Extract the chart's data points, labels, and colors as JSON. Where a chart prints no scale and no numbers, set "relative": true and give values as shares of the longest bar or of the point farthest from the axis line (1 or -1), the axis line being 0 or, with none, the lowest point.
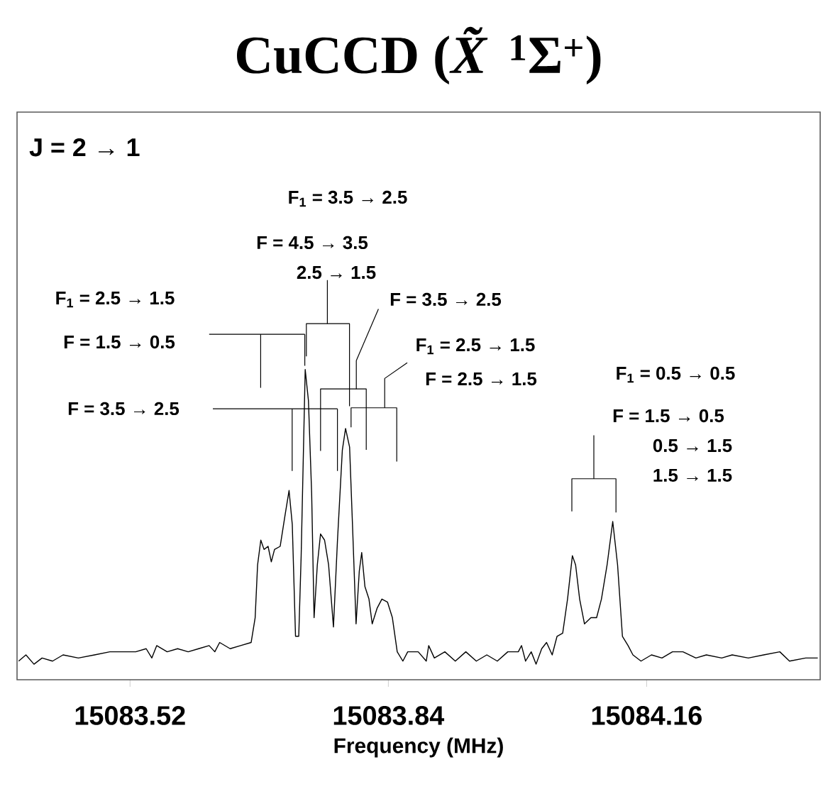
{
  "chart_data": {
    "type": "line",
    "title": "CuCCD (*X̃*$^{1}$Σ$^{+}$)",
    "xlabel": "Frequency (MHz)",
    "relative": true,
    "marker": "none",
    "line_style": "solid",
    "xlim": [
      15083.38,
      15084.375
    ],
    "xticks": [
      15083.52,
      15083.84,
      15084.16
    ],
    "series": [
      {
        "color": "#000000",
        "x": [
          15083.382,
          15083.391,
          15083.401,
          15083.411,
          15083.424,
          15083.437,
          15083.456,
          15083.476,
          15083.495,
          15083.515,
          15083.527,
          15083.54,
          15083.547,
          15083.553,
          15083.566,
          15083.579,
          15083.592,
          15083.605,
          15083.618,
          15083.625,
          15083.631,
          15083.644,
          15083.657,
          15083.67,
          15083.675,
          15083.678,
          15083.682,
          15083.686,
          15083.691,
          15083.695,
          15083.699,
          15083.706,
          15083.712,
          15083.717,
          15083.721,
          15083.725,
          15083.729,
          15083.732,
          15083.737,
          15083.741,
          15083.745,
          15083.748,
          15083.752,
          15083.756,
          15083.761,
          15083.766,
          15083.772,
          15083.777,
          15083.783,
          15083.787,
          15083.792,
          15083.796,
          15083.8,
          15083.804,
          15083.807,
          15083.811,
          15083.816,
          15083.82,
          15083.826,
          15083.832,
          15083.839,
          15083.845,
          15083.851,
          15083.858,
          15083.864,
          15083.877,
          15083.887,
          15083.89,
          15083.897,
          15083.91,
          15083.923,
          15083.936,
          15083.949,
          15083.962,
          15083.975,
          15083.988,
          15084.001,
          15084.005,
          15084.01,
          15084.017,
          15084.023,
          15084.03,
          15084.036,
          15084.043,
          15084.049,
          15084.056,
          15084.062,
          15084.068,
          15084.072,
          15084.077,
          15084.083,
          15084.091,
          15084.098,
          15084.104,
          15084.111,
          15084.118,
          15084.124,
          15084.13,
          15084.137,
          15084.143,
          15084.153,
          15084.166,
          15084.179,
          15084.192,
          15084.205,
          15084.221,
          15084.234,
          15084.253,
          15084.266,
          15084.286,
          15084.305,
          15084.325,
          15084.337,
          15084.357,
          15084.372
        ],
        "values": [
          0.06,
          0.08,
          0.05,
          0.07,
          0.06,
          0.08,
          0.07,
          0.08,
          0.09,
          0.09,
          0.09,
          0.1,
          0.07,
          0.11,
          0.09,
          0.1,
          0.09,
          0.1,
          0.11,
          0.09,
          0.12,
          0.1,
          0.11,
          0.12,
          0.2,
          0.37,
          0.45,
          0.42,
          0.43,
          0.38,
          0.42,
          0.43,
          0.53,
          0.61,
          0.5,
          0.14,
          0.14,
          0.4,
          1.0,
          0.9,
          0.6,
          0.2,
          0.37,
          0.47,
          0.45,
          0.37,
          0.17,
          0.45,
          0.74,
          0.81,
          0.75,
          0.47,
          0.18,
          0.35,
          0.41,
          0.3,
          0.26,
          0.18,
          0.23,
          0.26,
          0.25,
          0.2,
          0.09,
          0.06,
          0.09,
          0.09,
          0.06,
          0.11,
          0.07,
          0.09,
          0.06,
          0.09,
          0.06,
          0.08,
          0.06,
          0.09,
          0.09,
          0.11,
          0.06,
          0.09,
          0.05,
          0.1,
          0.12,
          0.08,
          0.14,
          0.15,
          0.26,
          0.4,
          0.37,
          0.26,
          0.18,
          0.2,
          0.2,
          0.26,
          0.37,
          0.51,
          0.37,
          0.14,
          0.11,
          0.08,
          0.06,
          0.08,
          0.07,
          0.09,
          0.09,
          0.07,
          0.08,
          0.07,
          0.08,
          0.07,
          0.08,
          0.09,
          0.06,
          0.07,
          0.07
        ]
      }
    ],
    "annotations": [
      "J = 2 → 1",
      "F$_{1}$ = 3.5 → 2.5",
      "F = 4.5 → 3.5",
      "2.5 → 1.5",
      "F$_{1}$ = 2.5 → 1.5",
      "F = 1.5 → 0.5",
      "F = 3.5 → 2.5",
      "F$_{1}$ = 2.5 → 1.5",
      "F = 2.5 → 1.5",
      "F = 3.5 → 2.5",
      "F$_{1}$ = 0.5 → 0.5",
      "F = 1.5 → 0.5",
      "0.5 → 1.5",
      "1.5 → 1.5"
    ]
  }
}
